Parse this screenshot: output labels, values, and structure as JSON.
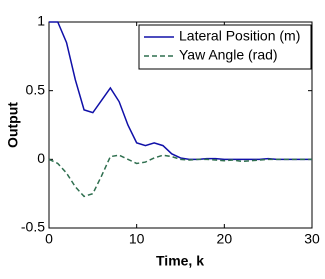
{
  "chart_data": {
    "type": "line",
    "x_label": "Time, k",
    "y_label": "Output",
    "x": [
      0,
      1,
      2,
      3,
      4,
      5,
      6,
      7,
      8,
      9,
      10,
      11,
      12,
      13,
      14,
      15,
      16,
      17,
      18,
      19,
      20,
      21,
      22,
      23,
      24,
      25,
      26,
      27,
      28,
      29,
      30
    ],
    "series": [
      {
        "name": "Lateral Position (m)",
        "color": "#1010a8",
        "linestyle": "solid",
        "values": [
          1,
          1,
          0.85,
          0.58,
          0.36,
          0.34,
          0.43,
          0.52,
          0.42,
          0.25,
          0.12,
          0.1,
          0.12,
          0.1,
          0.04,
          0.01,
          0,
          0,
          0.005,
          0.005,
          0,
          0,
          0,
          0,
          0,
          0.005,
          0,
          0,
          0,
          0,
          0
        ]
      },
      {
        "name": "Yaw Angle (rad)",
        "color": "#2f6f4f",
        "linestyle": "dashed",
        "values": [
          0,
          -0.03,
          -0.1,
          -0.2,
          -0.27,
          -0.25,
          -0.12,
          0.02,
          0.03,
          0,
          -0.03,
          -0.02,
          0.01,
          0.03,
          0.02,
          0,
          -0.005,
          0,
          0,
          -0.005,
          -0.01,
          -0.005,
          -0.015,
          -0.01,
          -0.005,
          0,
          0,
          0,
          0,
          0,
          0
        ]
      }
    ],
    "xlim": [
      0,
      30
    ],
    "xticks": [
      0,
      10,
      20,
      30
    ],
    "ylim": [
      -0.5,
      1
    ],
    "yticks": [
      -0.5,
      0,
      0.5,
      1
    ],
    "legend": "upper-right"
  }
}
